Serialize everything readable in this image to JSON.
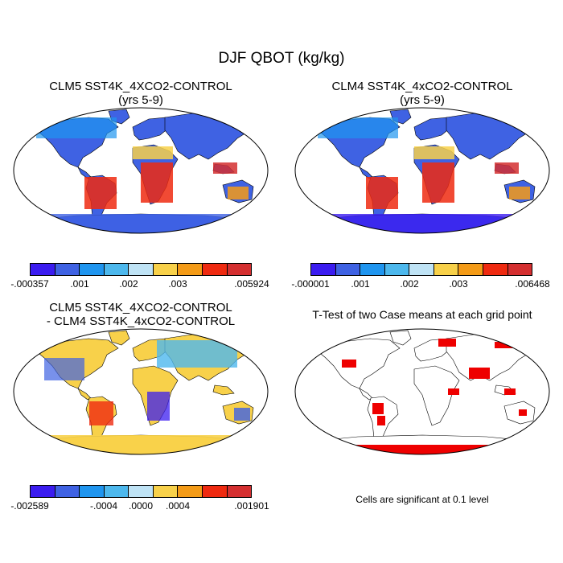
{
  "figure": {
    "title": "DJF QBOT (kg/kg)"
  },
  "panels": [
    {
      "title_line1": "CLM5 SST4K_4XCO2-CONTROL",
      "title_line2": "(yrs 5-9)",
      "colors": [
        "#3b1cf0",
        "#3f62e3",
        "#1f95ef",
        "#4db8ed",
        "#bfe3f5",
        "#f8d14a",
        "#f49b17",
        "#ef2a10",
        "#d42f30"
      ],
      "tick_labels": [
        "-.000357",
        ".001",
        ".002",
        ".003",
        ".005924"
      ]
    },
    {
      "title_line1": "CLM4 SST4K_4xCO2-CONTROL",
      "title_line2": "(yrs 5-9)",
      "colors": [
        "#3b1cf0",
        "#3f62e3",
        "#1f95ef",
        "#4db8ed",
        "#bfe3f5",
        "#f8d14a",
        "#f49b17",
        "#ef2a10",
        "#d42f30"
      ],
      "tick_labels": [
        "-.000001",
        ".001",
        ".002",
        ".003",
        ".006468"
      ]
    },
    {
      "title_line1": "CLM5 SST4K_4XCO2-CONTROL",
      "title_line2": "- CLM4 SST4K_4xCO2-CONTROL",
      "colors": [
        "#3b1cf0",
        "#3f62e3",
        "#1f95ef",
        "#4db8ed",
        "#bfe3f5",
        "#f8d14a",
        "#f49b17",
        "#ef2a10",
        "#d42f30"
      ],
      "tick_labels": [
        "-.002589",
        "-.0004",
        ".0000",
        ".0004",
        ".001901"
      ]
    },
    {
      "title_line1": "T-Test of two Case means at each grid point",
      "note": "Cells are significant at 0.1 level",
      "significant_color": "#ee0000"
    }
  ]
}
